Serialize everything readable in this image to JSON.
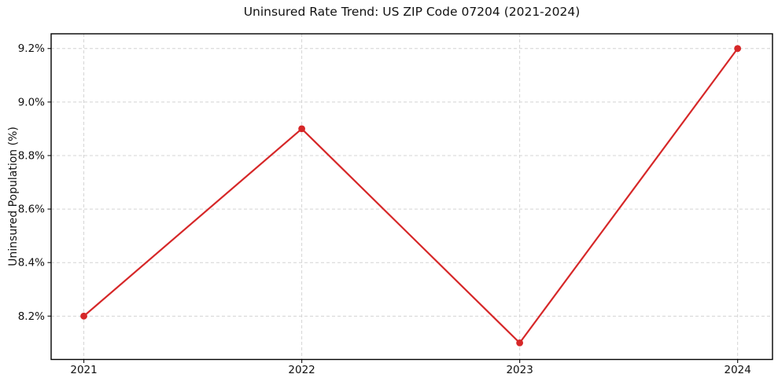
{
  "chart_data": {
    "type": "line",
    "title": "Uninsured Rate Trend: US ZIP Code 07204 (2021-2024)",
    "xlabel": "",
    "ylabel": "Uninsured Population (%)",
    "x": [
      2021,
      2022,
      2023,
      2024
    ],
    "x_tick_labels": [
      "2021",
      "2022",
      "2023",
      "2024"
    ],
    "values": [
      8.2,
      8.9,
      8.1,
      9.2
    ],
    "y_ticks": [
      8.2,
      8.4,
      8.6,
      8.8,
      9.0,
      9.2
    ],
    "y_tick_labels": [
      "8.2%",
      "8.4%",
      "8.6%",
      "8.8%",
      "9.0%",
      "9.2%"
    ],
    "xlim": [
      2020.85,
      2024.16
    ],
    "ylim": [
      8.038,
      9.255
    ],
    "grid": true,
    "grid_style": "dashed",
    "grid_color": "#d4d4d4",
    "line_color": "#d62728",
    "marker": "circle",
    "legend": "none",
    "background": "#ffffff",
    "axes_color": "#000000",
    "text_color": "#111111"
  }
}
